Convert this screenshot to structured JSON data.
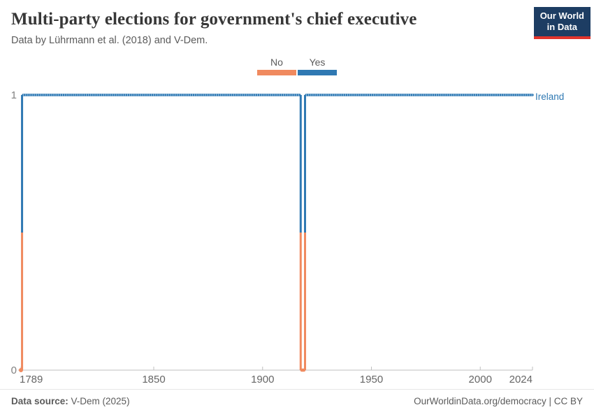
{
  "header": {
    "title": "Multi-party elections for government's chief executive",
    "subtitle": "Data by Lührmann et al. (2018) and V-Dem.",
    "logo_line1": "Our World",
    "logo_line2": "in Data"
  },
  "chart_data": {
    "type": "line",
    "title": "Multi-party elections for government's chief executive",
    "subtitle": "Data by Lührmann et al. (2018) and V-Dem.",
    "x_range": [
      1789,
      2024
    ],
    "y_range": [
      0,
      1
    ],
    "x_ticks": [
      "1789",
      "1850",
      "1900",
      "1950",
      "2000",
      "2024"
    ],
    "y_ticks": [
      {
        "label": "0",
        "value": 0
      },
      {
        "label": "1",
        "value": 1
      }
    ],
    "legend": [
      {
        "label": "No",
        "value": 0,
        "color": "#F08A5F"
      },
      {
        "label": "Yes",
        "value": 1,
        "color": "#2F79B3"
      }
    ],
    "value_colors": {
      "0": "#F08A5F",
      "1": "#2F79B3"
    },
    "marker_overlay_colors": {
      "0": "#F7BCA0",
      "1": "#8FB9DB"
    },
    "series": [
      {
        "name": "Ireland",
        "label_color": "#2F79B3",
        "points": [
          [
            1789,
            0
          ],
          [
            1790,
            1
          ],
          [
            1917,
            1
          ],
          [
            1918,
            0
          ],
          [
            1919,
            0
          ],
          [
            1920,
            1
          ],
          [
            2024,
            1
          ]
        ]
      }
    ],
    "axis_color": "#bfbfbf",
    "tick_label_color": "#666666",
    "y_label_color": "#818181",
    "legend_note": "grid off, legend top-center, entity label right of line end"
  },
  "footer": {
    "datasource_label": "Data source:",
    "datasource_value": " V-Dem (2025)",
    "credit": "OurWorldinData.org/democracy | CC BY"
  }
}
